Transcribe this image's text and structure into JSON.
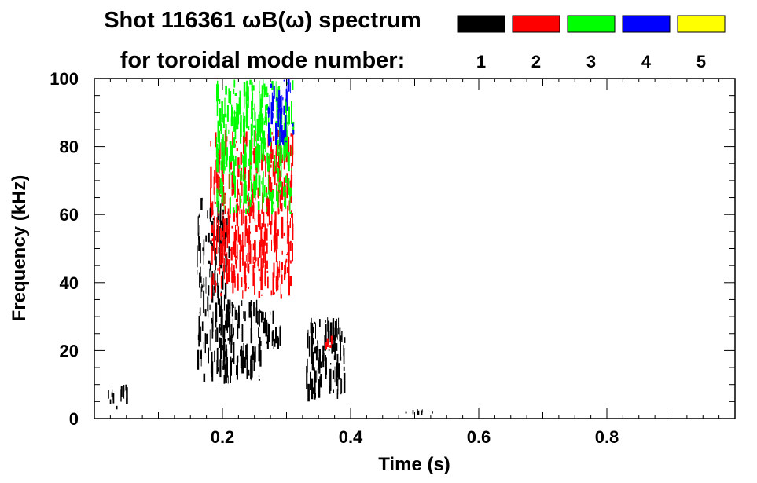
{
  "chart_data": {
    "type": "heatmap",
    "title_line1": "Shot 116361 ωB(ω) spectrum",
    "title_line2": "for toroidal mode number:",
    "xlabel": "Time (s)",
    "ylabel": "Frequency (kHz)",
    "xlim": [
      0.0,
      1.0
    ],
    "ylim": [
      0,
      100
    ],
    "x_ticks": [
      "0.2",
      "0.4",
      "0.6",
      "0.8"
    ],
    "x_tick_values": [
      0.2,
      0.4,
      0.6,
      0.8
    ],
    "y_ticks": [
      "0",
      "20",
      "40",
      "60",
      "80",
      "100"
    ],
    "y_tick_values": [
      0,
      20,
      40,
      60,
      80,
      100
    ],
    "grid": false,
    "legend_position": "top-right",
    "modes": [
      {
        "label": "1",
        "color": "#000000"
      },
      {
        "label": "2",
        "color": "#ff0000"
      },
      {
        "label": "3",
        "color": "#00ff00"
      },
      {
        "label": "4",
        "color": "#0000ff"
      },
      {
        "label": "5",
        "color": "#ffff00"
      }
    ],
    "series": [
      {
        "mode": "1",
        "regions": [
          {
            "t": [
              0.16,
              0.21
            ],
            "f": [
              10,
              65
            ]
          },
          {
            "t": [
              0.21,
              0.26
            ],
            "f": [
              10,
              35
            ]
          },
          {
            "t": [
              0.26,
              0.29
            ],
            "f": [
              20,
              32
            ]
          },
          {
            "t": [
              0.33,
              0.39
            ],
            "f": [
              5,
              30
            ]
          },
          {
            "t": [
              0.02,
              0.05
            ],
            "f": [
              2,
              10
            ]
          },
          {
            "t": [
              0.48,
              0.54
            ],
            "f": [
              1,
              3
            ]
          }
        ]
      },
      {
        "mode": "2",
        "regions": [
          {
            "t": [
              0.18,
              0.31
            ],
            "f": [
              35,
              85
            ]
          },
          {
            "t": [
              0.36,
              0.37
            ],
            "f": [
              20,
              25
            ]
          }
        ]
      },
      {
        "mode": "3",
        "regions": [
          {
            "t": [
              0.19,
              0.31
            ],
            "f": [
              60,
              100
            ]
          }
        ]
      },
      {
        "mode": "4",
        "regions": [
          {
            "t": [
              0.27,
              0.31
            ],
            "f": [
              80,
              100
            ]
          }
        ]
      }
    ]
  }
}
